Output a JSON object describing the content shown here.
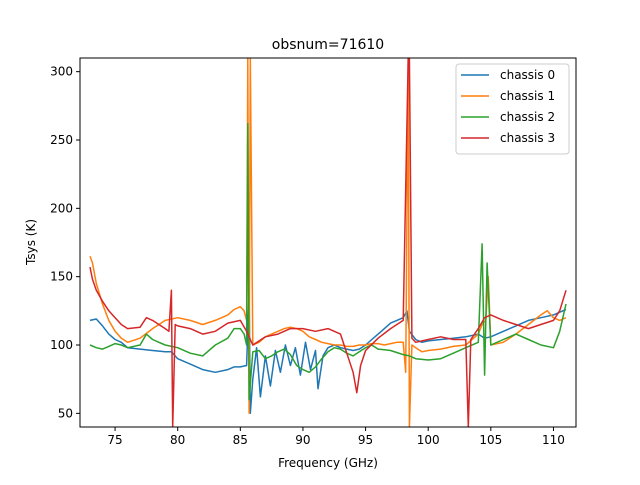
{
  "chart_data": {
    "type": "line",
    "title": "obsnum=71610",
    "xlabel": "Frequency (GHz)",
    "ylabel": "Tsys (K)",
    "xlim": [
      72.2,
      111.8
    ],
    "ylim": [
      40,
      310
    ],
    "xticks": [
      75,
      80,
      85,
      90,
      95,
      100,
      105,
      110
    ],
    "yticks": [
      50,
      100,
      150,
      200,
      250,
      300
    ],
    "xtick_labels": [
      "75",
      "80",
      "85",
      "90",
      "95",
      "100",
      "105",
      "110"
    ],
    "ytick_labels": [
      "50",
      "100",
      "150",
      "200",
      "250",
      "300"
    ],
    "legend_position": "top-right",
    "grid": false,
    "series": [
      {
        "name": "chassis 0",
        "color": "#1f77b4",
        "points": [
          [
            73.0,
            118
          ],
          [
            73.5,
            119
          ],
          [
            74.0,
            114
          ],
          [
            74.5,
            108
          ],
          [
            75.0,
            104
          ],
          [
            75.5,
            102
          ],
          [
            76.0,
            98
          ],
          [
            77.0,
            97
          ],
          [
            78.0,
            96
          ],
          [
            79.0,
            95
          ],
          [
            79.5,
            95
          ],
          [
            80.0,
            90
          ],
          [
            81.0,
            86
          ],
          [
            82.0,
            82
          ],
          [
            83.0,
            80
          ],
          [
            84.0,
            82
          ],
          [
            84.5,
            84
          ],
          [
            85.0,
            84
          ],
          [
            85.5,
            85
          ],
          [
            85.7,
            140
          ],
          [
            85.8,
            50
          ],
          [
            86.0,
            75
          ],
          [
            86.3,
            98
          ],
          [
            86.6,
            62
          ],
          [
            87.0,
            92
          ],
          [
            87.4,
            70
          ],
          [
            87.8,
            96
          ],
          [
            88.2,
            80
          ],
          [
            88.6,
            100
          ],
          [
            89.0,
            85
          ],
          [
            89.4,
            98
          ],
          [
            89.8,
            78
          ],
          [
            90.2,
            102
          ],
          [
            90.6,
            82
          ],
          [
            91.0,
            96
          ],
          [
            91.2,
            68
          ],
          [
            91.6,
            92
          ],
          [
            92.0,
            98
          ],
          [
            92.5,
            100
          ],
          [
            93.0,
            98
          ],
          [
            93.5,
            97
          ],
          [
            94.0,
            96
          ],
          [
            94.5,
            97
          ],
          [
            95.0,
            100
          ],
          [
            95.5,
            104
          ],
          [
            96.0,
            108
          ],
          [
            96.5,
            112
          ],
          [
            97.0,
            116
          ],
          [
            97.5,
            118
          ],
          [
            98.0,
            120
          ],
          [
            98.3,
            125
          ],
          [
            98.5,
            110
          ],
          [
            99.0,
            104
          ],
          [
            99.5,
            102
          ],
          [
            100.0,
            103
          ],
          [
            101.0,
            104
          ],
          [
            102.0,
            105
          ],
          [
            103.0,
            106
          ],
          [
            104.0,
            108
          ],
          [
            104.5,
            105
          ],
          [
            105.0,
            106
          ],
          [
            106.0,
            110
          ],
          [
            107.0,
            114
          ],
          [
            108.0,
            118
          ],
          [
            109.0,
            120
          ],
          [
            110.0,
            122
          ],
          [
            110.5,
            124
          ],
          [
            111.0,
            126
          ]
        ]
      },
      {
        "name": "chassis 1",
        "color": "#ff7f0e",
        "points": [
          [
            73.0,
            165
          ],
          [
            73.2,
            160
          ],
          [
            73.5,
            145
          ],
          [
            74.0,
            130
          ],
          [
            74.5,
            118
          ],
          [
            75.0,
            110
          ],
          [
            75.5,
            105
          ],
          [
            76.0,
            102
          ],
          [
            77.0,
            105
          ],
          [
            78.0,
            112
          ],
          [
            79.0,
            118
          ],
          [
            80.0,
            120
          ],
          [
            81.0,
            118
          ],
          [
            82.0,
            115
          ],
          [
            83.0,
            118
          ],
          [
            84.0,
            122
          ],
          [
            84.5,
            126
          ],
          [
            85.0,
            128
          ],
          [
            85.3,
            125
          ],
          [
            85.5,
            118
          ],
          [
            85.6,
            310
          ],
          [
            85.7,
            50
          ],
          [
            85.8,
            310
          ],
          [
            86.0,
            100
          ],
          [
            86.5,
            102
          ],
          [
            87.0,
            106
          ],
          [
            87.5,
            108
          ],
          [
            88.0,
            110
          ],
          [
            88.5,
            112
          ],
          [
            89.0,
            113
          ],
          [
            89.5,
            112
          ],
          [
            90.0,
            110
          ],
          [
            90.5,
            106
          ],
          [
            91.0,
            104
          ],
          [
            91.5,
            102
          ],
          [
            92.0,
            101
          ],
          [
            92.5,
            100
          ],
          [
            93.0,
            100
          ],
          [
            93.5,
            99
          ],
          [
            94.0,
            99
          ],
          [
            94.5,
            100
          ],
          [
            95.0,
            100
          ],
          [
            95.5,
            101
          ],
          [
            96.0,
            101
          ],
          [
            96.5,
            100
          ],
          [
            97.0,
            101
          ],
          [
            97.5,
            102
          ],
          [
            98.0,
            102
          ],
          [
            98.2,
            80
          ],
          [
            98.4,
            310
          ],
          [
            98.5,
            40
          ],
          [
            98.7,
            100
          ],
          [
            99.0,
            98
          ],
          [
            99.5,
            95
          ],
          [
            100.0,
            96
          ],
          [
            101.0,
            97
          ],
          [
            102.0,
            99
          ],
          [
            103.0,
            100
          ],
          [
            104.0,
            108
          ],
          [
            104.3,
            115
          ],
          [
            104.6,
            118
          ],
          [
            104.8,
            150
          ],
          [
            105.0,
            100
          ],
          [
            106.0,
            102
          ],
          [
            107.0,
            108
          ],
          [
            108.0,
            115
          ],
          [
            109.0,
            122
          ],
          [
            109.5,
            125
          ],
          [
            110.0,
            120
          ],
          [
            110.5,
            118
          ],
          [
            111.0,
            120
          ]
        ]
      },
      {
        "name": "chassis 2",
        "color": "#2ca02c",
        "points": [
          [
            73.0,
            100
          ],
          [
            73.5,
            98
          ],
          [
            74.0,
            97
          ],
          [
            74.5,
            99
          ],
          [
            75.0,
            101
          ],
          [
            75.5,
            100
          ],
          [
            76.0,
            98
          ],
          [
            77.0,
            100
          ],
          [
            77.5,
            108
          ],
          [
            78.0,
            104
          ],
          [
            78.5,
            102
          ],
          [
            79.0,
            100
          ],
          [
            80.0,
            98
          ],
          [
            81.0,
            94
          ],
          [
            82.0,
            92
          ],
          [
            83.0,
            100
          ],
          [
            84.0,
            105
          ],
          [
            84.5,
            112
          ],
          [
            85.0,
            112
          ],
          [
            85.3,
            108
          ],
          [
            85.5,
            100
          ],
          [
            85.6,
            262
          ],
          [
            85.7,
            60
          ],
          [
            86.0,
            95
          ],
          [
            86.5,
            96
          ],
          [
            87.0,
            90
          ],
          [
            87.5,
            92
          ],
          [
            88.0,
            95
          ],
          [
            88.5,
            97
          ],
          [
            89.0,
            93
          ],
          [
            89.5,
            85
          ],
          [
            90.0,
            82
          ],
          [
            90.5,
            80
          ],
          [
            91.0,
            84
          ],
          [
            91.5,
            90
          ],
          [
            92.0,
            95
          ],
          [
            92.5,
            98
          ],
          [
            93.0,
            97
          ],
          [
            93.5,
            94
          ],
          [
            94.0,
            92
          ],
          [
            94.5,
            95
          ],
          [
            95.0,
            98
          ],
          [
            95.5,
            100
          ],
          [
            96.0,
            97
          ],
          [
            97.0,
            96
          ],
          [
            98.0,
            93
          ],
          [
            98.5,
            92
          ],
          [
            99.0,
            90
          ],
          [
            100.0,
            89
          ],
          [
            101.0,
            90
          ],
          [
            102.0,
            94
          ],
          [
            103.0,
            98
          ],
          [
            104.0,
            102
          ],
          [
            104.3,
            174
          ],
          [
            104.5,
            78
          ],
          [
            104.7,
            160
          ],
          [
            105.0,
            100
          ],
          [
            106.0,
            104
          ],
          [
            107.0,
            108
          ],
          [
            108.0,
            104
          ],
          [
            109.0,
            100
          ],
          [
            110.0,
            98
          ],
          [
            110.5,
            110
          ],
          [
            111.0,
            130
          ]
        ]
      },
      {
        "name": "chassis 3",
        "color": "#d62728",
        "points": [
          [
            73.0,
            157
          ],
          [
            73.2,
            148
          ],
          [
            73.5,
            140
          ],
          [
            74.0,
            132
          ],
          [
            74.5,
            125
          ],
          [
            75.0,
            120
          ],
          [
            75.5,
            115
          ],
          [
            76.0,
            112
          ],
          [
            77.0,
            113
          ],
          [
            77.5,
            120
          ],
          [
            78.0,
            118
          ],
          [
            78.5,
            115
          ],
          [
            79.0,
            112
          ],
          [
            79.3,
            110
          ],
          [
            79.5,
            140
          ],
          [
            79.6,
            40
          ],
          [
            79.8,
            115
          ],
          [
            80.0,
            114
          ],
          [
            81.0,
            112
          ],
          [
            82.0,
            108
          ],
          [
            83.0,
            110
          ],
          [
            84.0,
            116
          ],
          [
            85.0,
            118
          ],
          [
            85.5,
            110
          ],
          [
            86.0,
            100
          ],
          [
            86.5,
            103
          ],
          [
            87.0,
            106
          ],
          [
            88.0,
            108
          ],
          [
            89.0,
            112
          ],
          [
            90.0,
            112
          ],
          [
            91.0,
            110
          ],
          [
            92.0,
            112
          ],
          [
            93.0,
            108
          ],
          [
            93.5,
            94
          ],
          [
            94.0,
            80
          ],
          [
            94.3,
            65
          ],
          [
            94.6,
            85
          ],
          [
            95.0,
            96
          ],
          [
            96.0,
            105
          ],
          [
            97.0,
            112
          ],
          [
            98.0,
            118
          ],
          [
            98.4,
            310
          ],
          [
            98.5,
            310
          ],
          [
            98.7,
            105
          ],
          [
            99.0,
            102
          ],
          [
            100.0,
            104
          ],
          [
            101.0,
            106
          ],
          [
            102.0,
            104
          ],
          [
            103.0,
            104
          ],
          [
            103.2,
            40
          ],
          [
            103.4,
            104
          ],
          [
            104.0,
            112
          ],
          [
            104.5,
            120
          ],
          [
            105.0,
            122
          ],
          [
            106.0,
            118
          ],
          [
            107.0,
            115
          ],
          [
            108.0,
            112
          ],
          [
            109.0,
            115
          ],
          [
            110.0,
            118
          ],
          [
            110.5,
            125
          ],
          [
            111.0,
            140
          ]
        ]
      }
    ]
  }
}
